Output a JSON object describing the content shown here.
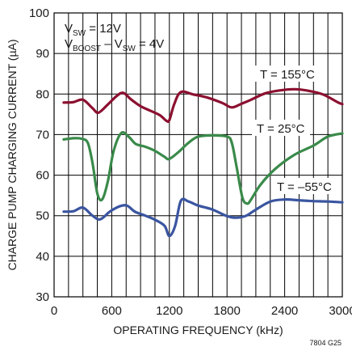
{
  "chart_data": {
    "type": "line",
    "xlabel": "OPERATING FREQUENCY (kHz)",
    "ylabel": "CHARGE PUMP CHARGING CURRENT (µA)",
    "xlim": [
      0,
      3000
    ],
    "ylim": [
      30,
      100
    ],
    "x_ticks": [
      "0",
      "600",
      "1200",
      "1800",
      "2400",
      "3000"
    ],
    "y_ticks": [
      "30",
      "40",
      "50",
      "60",
      "70",
      "80",
      "90",
      "100"
    ],
    "grid": true,
    "conditions": {
      "line1": {
        "main": "V",
        "sub1": "SW",
        "rest": " = 12V"
      },
      "line2": {
        "main": "V",
        "sub1": "BOOST",
        "mid": " – V",
        "sub2": "SW",
        "rest": " = 4V"
      }
    },
    "figure_id": "7804 G25",
    "series": [
      {
        "name": "T = 155°C",
        "color": "#8c1030",
        "x": [
          100,
          200,
          300,
          400,
          460,
          550,
          650,
          720,
          800,
          900,
          1000,
          1100,
          1170,
          1200,
          1250,
          1320,
          1450,
          1600,
          1750,
          1850,
          1950,
          2050,
          2200,
          2350,
          2500,
          2650,
          2800,
          2950,
          3000
        ],
        "y": [
          77.9,
          78.0,
          78.6,
          76.5,
          75.4,
          77.2,
          79.5,
          80.3,
          78.7,
          77.0,
          75.9,
          74.8,
          73.4,
          73.6,
          77.5,
          80.5,
          79.9,
          79.1,
          77.8,
          76.7,
          77.6,
          78.6,
          80.2,
          80.9,
          81.2,
          80.8,
          79.9,
          78.0,
          77.5
        ]
      },
      {
        "name": "T = 25°C",
        "color": "#3a8a4a",
        "x": [
          100,
          200,
          280,
          350,
          400,
          450,
          500,
          560,
          620,
          700,
          780,
          850,
          950,
          1050,
          1150,
          1200,
          1300,
          1400,
          1500,
          1650,
          1800,
          1850,
          1900,
          1960,
          2010,
          2050,
          2150,
          2300,
          2500,
          2700,
          2850,
          3000
        ],
        "y": [
          68.8,
          69.1,
          69.0,
          68.0,
          63.0,
          55.5,
          54.0,
          58.5,
          66.0,
          70.4,
          69.4,
          67.7,
          67.0,
          66.0,
          64.5,
          64.0,
          65.8,
          68.0,
          69.5,
          69.8,
          69.5,
          68.0,
          62.0,
          54.5,
          53.0,
          54.0,
          57.7,
          61.5,
          65.0,
          67.3,
          69.5,
          70.3
        ]
      },
      {
        "name": "T = –55°C",
        "color": "#3a55a0",
        "x": [
          100,
          200,
          300,
          400,
          480,
          580,
          680,
          760,
          840,
          950,
          1050,
          1150,
          1200,
          1260,
          1320,
          1400,
          1500,
          1650,
          1800,
          1900,
          2000,
          2100,
          2250,
          2400,
          2550,
          2700,
          2850,
          3000
        ],
        "y": [
          51.0,
          51.1,
          52.0,
          50.0,
          49.1,
          51.0,
          52.3,
          52.5,
          51.0,
          50.0,
          49.0,
          47.5,
          45.0,
          47.5,
          53.7,
          53.5,
          52.5,
          51.5,
          49.9,
          49.5,
          50.0,
          51.5,
          53.5,
          54.0,
          53.8,
          53.6,
          53.5,
          53.3
        ]
      }
    ]
  }
}
